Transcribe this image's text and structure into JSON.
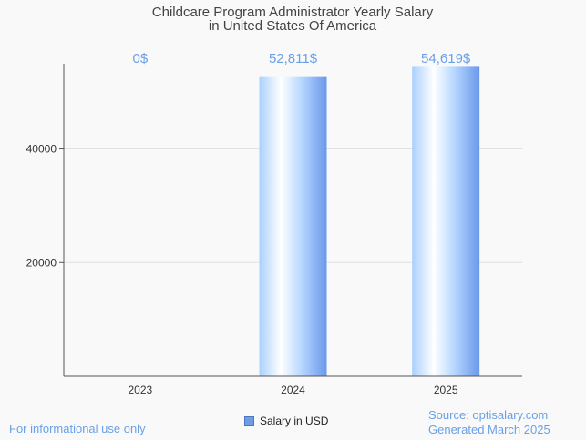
{
  "chart_data": {
    "type": "bar",
    "title": [
      "Childcare Program Administrator Yearly Salary",
      "in United States Of America"
    ],
    "categories": [
      "2023",
      "2024",
      "2025"
    ],
    "series": [
      {
        "name": "Salary in USD",
        "values": [
          0,
          52811,
          54619
        ]
      }
    ],
    "data_labels": [
      "0$",
      "52,811$",
      "54,619$"
    ],
    "y_ticks": [
      20000,
      40000
    ],
    "ylim": [
      0,
      55000
    ],
    "grid": true,
    "legend_position": "bottom-center",
    "colors": {
      "bar_light": "#ffffff",
      "bar_mid": "#b8d8ff",
      "bar_dark": "#6a98ea",
      "label": "#6aa0e8"
    }
  },
  "footer": {
    "left": "For informational use only",
    "source": "Source: optisalary.com",
    "generated": "Generated March 2025"
  }
}
